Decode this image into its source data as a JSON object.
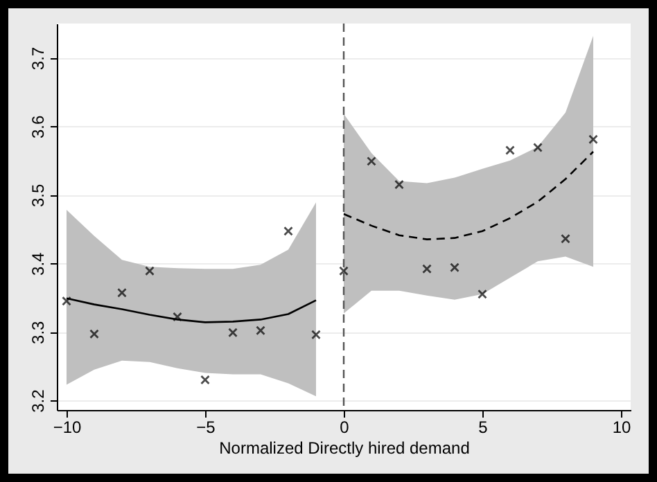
{
  "chart_data": {
    "type": "scatter",
    "xlabel": "Normalized Directly hired demand",
    "xlim": [
      -10.35,
      10.35
    ],
    "xticks": [
      -10,
      -5,
      0,
      5,
      10
    ],
    "ylim": [
      3.186,
      3.75
    ],
    "yticks": [
      3.2,
      3.3,
      3.4,
      3.5,
      3.6,
      3.7
    ],
    "grid": "y",
    "series": [
      {
        "type": "line",
        "color": "#000000",
        "line_style": "solid",
        "x": [
          -10,
          -9,
          -8,
          -7,
          -6,
          -5,
          -4,
          -3,
          -2,
          -1
        ],
        "values": [
          3.349,
          3.34,
          3.333,
          3.325,
          3.318,
          3.314,
          3.315,
          3.318,
          3.326,
          3.346
        ],
        "lower": [
          3.223,
          3.245,
          3.258,
          3.256,
          3.247,
          3.24,
          3.238,
          3.238,
          3.225,
          3.206
        ],
        "upper": [
          3.478,
          3.44,
          3.405,
          3.395,
          3.393,
          3.392,
          3.392,
          3.398,
          3.42,
          3.489
        ]
      },
      {
        "type": "line",
        "color": "#000000",
        "line_style": "dashed",
        "x": [
          0,
          1,
          2,
          3,
          4,
          5,
          6,
          7,
          8,
          9
        ],
        "values": [
          3.472,
          3.455,
          3.441,
          3.435,
          3.437,
          3.447,
          3.466,
          3.49,
          3.523,
          3.563
        ],
        "lower": [
          3.327,
          3.36,
          3.36,
          3.353,
          3.347,
          3.355,
          3.379,
          3.403,
          3.41,
          3.395
        ],
        "upper": [
          3.618,
          3.561,
          3.52,
          3.517,
          3.525,
          3.538,
          3.55,
          3.57,
          3.62,
          3.732
        ]
      },
      {
        "marker": "cross",
        "color": "#000000",
        "x": [
          -10,
          -9,
          -8,
          -7,
          -6,
          -5,
          -4,
          -3,
          -2,
          -1,
          0,
          1,
          2,
          3,
          4,
          5,
          6,
          7,
          8,
          9
        ],
        "values": [
          3.345,
          3.297,
          3.357,
          3.389,
          3.322,
          3.23,
          3.299,
          3.302,
          3.447,
          3.296,
          3.389,
          3.549,
          3.515,
          3.392,
          3.394,
          3.355,
          3.565,
          3.569,
          3.436,
          3.581
        ]
      }
    ],
    "ref_lines": [
      {
        "axis": "x",
        "value": 0,
        "color": "#555555",
        "line_style": "dashed"
      }
    ]
  }
}
